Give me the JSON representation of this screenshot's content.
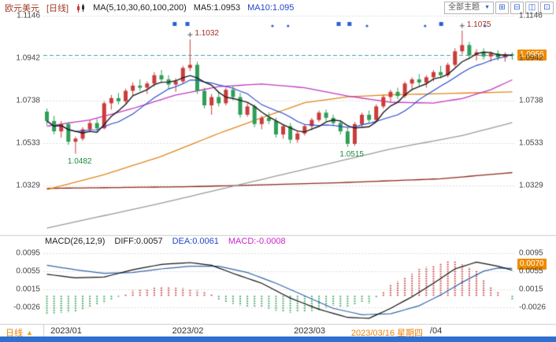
{
  "header": {
    "symbol": "欧元美元",
    "period_tag": "[日线]",
    "ma_settings": "MA(5,10,30,60,100,200)",
    "ma5_label": "MA5:1.0953",
    "ma10_label": "MA10:1.095",
    "theme_select": "全部主题",
    "caret": "▼"
  },
  "macd_header": {
    "name": "MACD(26,12,9)",
    "diff": "DIFF:0.0057",
    "dea": "DEA:0.0061",
    "macd": "MACD:-0.0008"
  },
  "badges": {
    "price": "1.0956",
    "price_value": 1.0956,
    "macd": "0.0070",
    "macd_value": 0.007
  },
  "bottom": {
    "period_tab": "日线",
    "arrow": "▲",
    "crosshair_date": "2023/03/16 星期四",
    "crosshair_idx": 43
  },
  "chart_data": {
    "type": "candlestick",
    "title": "欧元美元 日线 (EUR/USD Daily)",
    "colors": {
      "up": "#cc3b3b",
      "down": "#2f9e57",
      "grid": "#dcdcdc",
      "last_price_line": "#3aa6a0",
      "marker": "#2a5fd0",
      "cross": "#555555"
    },
    "price_axis": {
      "max": 1.1146,
      "min": 1.0099,
      "ticks": [
        {
          "label": "1.1146",
          "value": 1.1146
        },
        {
          "label": "1.0942",
          "value": 1.0942
        },
        {
          "label": "1.0738",
          "value": 1.0738
        },
        {
          "label": "1.0533",
          "value": 1.0533
        },
        {
          "label": "1.0329",
          "value": 1.0329
        }
      ]
    },
    "candles": [
      [
        1.0685,
        1.07,
        1.062,
        1.064
      ],
      [
        1.064,
        1.0665,
        1.0575,
        1.059
      ],
      [
        1.059,
        1.064,
        1.056,
        1.0625
      ],
      [
        1.0625,
        1.0635,
        1.0525,
        1.054
      ],
      [
        1.054,
        1.0565,
        1.0482,
        1.0555
      ],
      [
        1.0555,
        1.061,
        1.0545,
        1.06
      ],
      [
        1.06,
        1.0645,
        1.0585,
        1.063
      ],
      [
        1.063,
        1.065,
        1.059,
        1.0605
      ],
      [
        1.0605,
        1.0735,
        1.06,
        1.0725
      ],
      [
        1.0725,
        1.0765,
        1.0695,
        1.075
      ],
      [
        1.075,
        1.0775,
        1.072,
        1.0735
      ],
      [
        1.0735,
        1.0795,
        1.0725,
        1.0785
      ],
      [
        1.0785,
        1.0825,
        1.076,
        1.081
      ],
      [
        1.081,
        1.084,
        1.0785,
        1.08
      ],
      [
        1.08,
        1.083,
        1.077,
        1.082
      ],
      [
        1.082,
        1.0875,
        1.0805,
        1.086
      ],
      [
        1.086,
        1.0885,
        1.0825,
        1.084
      ],
      [
        1.084,
        1.086,
        1.0795,
        1.0815
      ],
      [
        1.0815,
        1.0845,
        1.078,
        1.083
      ],
      [
        1.083,
        1.0905,
        1.082,
        1.0895
      ],
      [
        1.0895,
        1.1032,
        1.088,
        1.091
      ],
      [
        1.091,
        1.0925,
        1.077,
        1.0785
      ],
      [
        1.0785,
        1.08,
        1.07,
        1.0715
      ],
      [
        1.0715,
        1.077,
        1.067,
        1.0755
      ],
      [
        1.0755,
        1.078,
        1.071,
        1.0725
      ],
      [
        1.0725,
        1.08,
        1.0715,
        1.079
      ],
      [
        1.079,
        1.081,
        1.074,
        1.0755
      ],
      [
        1.0755,
        1.0775,
        1.0655,
        1.067
      ],
      [
        1.067,
        1.0725,
        1.066,
        1.071
      ],
      [
        1.071,
        1.072,
        1.061,
        1.0625
      ],
      [
        1.0625,
        1.0665,
        1.06,
        1.0655
      ],
      [
        1.0655,
        1.068,
        1.0625,
        1.064
      ],
      [
        1.064,
        1.0655,
        1.056,
        1.0575
      ],
      [
        1.0575,
        1.0625,
        1.0555,
        1.0615
      ],
      [
        1.0615,
        1.063,
        1.0533,
        1.055
      ],
      [
        1.055,
        1.059,
        1.0535,
        1.058
      ],
      [
        1.058,
        1.0625,
        1.057,
        1.0615
      ],
      [
        1.0615,
        1.0655,
        1.0595,
        1.0645
      ],
      [
        1.0645,
        1.069,
        1.0635,
        1.068
      ],
      [
        1.068,
        1.0695,
        1.064,
        1.0655
      ],
      [
        1.0655,
        1.067,
        1.0615,
        1.063
      ],
      [
        1.063,
        1.0645,
        1.0575,
        1.059
      ],
      [
        1.059,
        1.061,
        1.0515,
        1.053
      ],
      [
        1.053,
        1.0635,
        1.052,
        1.0625
      ],
      [
        1.0625,
        1.068,
        1.061,
        1.067
      ],
      [
        1.067,
        1.069,
        1.063,
        1.0645
      ],
      [
        1.0645,
        1.072,
        1.064,
        1.071
      ],
      [
        1.071,
        1.0765,
        1.07,
        1.0755
      ],
      [
        1.0755,
        1.079,
        1.073,
        1.078
      ],
      [
        1.078,
        1.08,
        1.0745,
        1.076
      ],
      [
        1.076,
        1.083,
        1.075,
        1.082
      ],
      [
        1.082,
        1.085,
        1.079,
        1.084
      ],
      [
        1.084,
        1.0865,
        1.0805,
        1.0825
      ],
      [
        1.0825,
        1.086,
        1.08,
        1.085
      ],
      [
        1.085,
        1.0885,
        1.083,
        1.0875
      ],
      [
        1.0875,
        1.0905,
        1.0845,
        1.086
      ],
      [
        1.086,
        1.092,
        1.085,
        1.091
      ],
      [
        1.091,
        1.099,
        1.09,
        1.0975
      ],
      [
        1.0975,
        1.1075,
        1.096,
        1.1005
      ],
      [
        1.1005,
        1.102,
        1.094,
        1.0955
      ],
      [
        1.0955,
        1.0985,
        1.093,
        1.097
      ],
      [
        1.097,
        1.099,
        1.0935,
        1.095
      ],
      [
        1.095,
        1.0975,
        1.0925,
        1.0965
      ],
      [
        1.0965,
        1.098,
        1.093,
        1.0945
      ],
      [
        1.0945,
        1.097,
        1.0925,
        1.096
      ],
      [
        1.096,
        1.097,
        1.0935,
        1.0956
      ]
    ],
    "ma_computed": [
      {
        "name": "MA5",
        "period": 5,
        "color": "#1a1a1a"
      },
      {
        "name": "MA10",
        "period": 10,
        "color": "#2244cc"
      }
    ],
    "ma_overlays": [
      {
        "name": "MA200",
        "color": "#8a2a1e",
        "anchors": [
          [
            0,
            1.0316
          ],
          [
            20,
            1.0324
          ],
          [
            40,
            1.0342
          ],
          [
            55,
            1.0362
          ],
          [
            65,
            1.0392
          ]
        ]
      },
      {
        "name": "MA100",
        "color": "#9a9a9a",
        "anchors": [
          [
            0,
            1.0125
          ],
          [
            16,
            1.0245
          ],
          [
            32,
            1.0375
          ],
          [
            48,
            1.0505
          ],
          [
            58,
            1.057
          ],
          [
            65,
            1.0632
          ]
        ]
      },
      {
        "name": "MA60",
        "color": "#e0861a",
        "anchors": [
          [
            0,
            1.031
          ],
          [
            8,
            1.0382
          ],
          [
            16,
            1.047
          ],
          [
            24,
            1.058
          ],
          [
            30,
            1.0655
          ],
          [
            36,
            1.0728
          ],
          [
            42,
            1.0756
          ],
          [
            48,
            1.0766
          ],
          [
            56,
            1.0772
          ],
          [
            65,
            1.078
          ]
        ]
      },
      {
        "name": "MA30",
        "color": "#c238c2",
        "anchors": [
          [
            0,
            1.0615
          ],
          [
            6,
            1.0645
          ],
          [
            12,
            1.07
          ],
          [
            18,
            1.0765
          ],
          [
            24,
            1.0805
          ],
          [
            30,
            1.0818
          ],
          [
            36,
            1.08
          ],
          [
            42,
            1.076
          ],
          [
            48,
            1.073
          ],
          [
            54,
            1.0726
          ],
          [
            58,
            1.0748
          ],
          [
            62,
            1.079
          ],
          [
            65,
            1.0838
          ]
        ]
      }
    ],
    "annotations": [
      {
        "idx": 20,
        "price": 1.1032,
        "text": "1.1032",
        "pos": "above"
      },
      {
        "idx": 58,
        "price": 1.1075,
        "text": "1.1075",
        "pos": "above"
      },
      {
        "idx": 4,
        "price": 1.0482,
        "text": "1.0482",
        "pos": "below"
      },
      {
        "idx": 42,
        "price": 1.0515,
        "text": "1.0515",
        "pos": "below"
      }
    ],
    "event_markers": [
      {
        "xf": 0.278,
        "type": "square"
      },
      {
        "xf": 0.305,
        "type": "square"
      },
      {
        "xf": 0.485,
        "type": "dot"
      },
      {
        "xf": 0.518,
        "type": "dot"
      },
      {
        "xf": 0.625,
        "type": "square"
      },
      {
        "xf": 0.648,
        "type": "square"
      },
      {
        "xf": 0.685,
        "type": "dot"
      },
      {
        "xf": 0.808,
        "type": "dot"
      },
      {
        "xf": 0.842,
        "type": "square"
      },
      {
        "xf": 0.935,
        "type": "dot"
      }
    ],
    "macd": {
      "max": 0.0102,
      "min": -0.0059,
      "ticks": [
        {
          "label": "0.0095",
          "value": 0.0095
        },
        {
          "label": "0.0055",
          "value": 0.0055
        },
        {
          "label": "0.0015",
          "value": 0.0015
        },
        {
          "label": "-0.0026",
          "value": -0.0026
        }
      ],
      "diff_color": "#111111",
      "dea_color": "#3366aa",
      "diff_anchors": [
        [
          0,
          0.0048
        ],
        [
          4,
          0.004
        ],
        [
          8,
          0.0042
        ],
        [
          12,
          0.0058
        ],
        [
          16,
          0.007
        ],
        [
          20,
          0.0074
        ],
        [
          23,
          0.0068
        ],
        [
          26,
          0.005
        ],
        [
          30,
          0.0028
        ],
        [
          34,
          -0.0005
        ],
        [
          38,
          -0.003
        ],
        [
          42,
          -0.0048
        ],
        [
          45,
          -0.005
        ],
        [
          48,
          -0.0028
        ],
        [
          51,
          -0.0002
        ],
        [
          54,
          0.0028
        ],
        [
          57,
          0.006
        ],
        [
          60,
          0.0075
        ],
        [
          63,
          0.0066
        ],
        [
          65,
          0.0057
        ]
      ],
      "dea_anchors": [
        [
          0,
          0.0068
        ],
        [
          4,
          0.0058
        ],
        [
          8,
          0.005
        ],
        [
          12,
          0.0052
        ],
        [
          16,
          0.006
        ],
        [
          20,
          0.0066
        ],
        [
          24,
          0.0066
        ],
        [
          28,
          0.0052
        ],
        [
          32,
          0.0028
        ],
        [
          36,
          0.0
        ],
        [
          40,
          -0.0028
        ],
        [
          44,
          -0.0042
        ],
        [
          48,
          -0.004
        ],
        [
          52,
          -0.0022
        ],
        [
          55,
          0.0002
        ],
        [
          58,
          0.003
        ],
        [
          61,
          0.0055
        ],
        [
          63,
          0.0062
        ],
        [
          65,
          0.0061
        ]
      ]
    },
    "date_ticks": [
      {
        "label": "2023/01",
        "idx": 1
      },
      {
        "label": "2023/02",
        "idx": 18
      },
      {
        "label": "2023/03",
        "idx": 35
      },
      {
        "label": "/04",
        "idx": 54
      }
    ]
  }
}
